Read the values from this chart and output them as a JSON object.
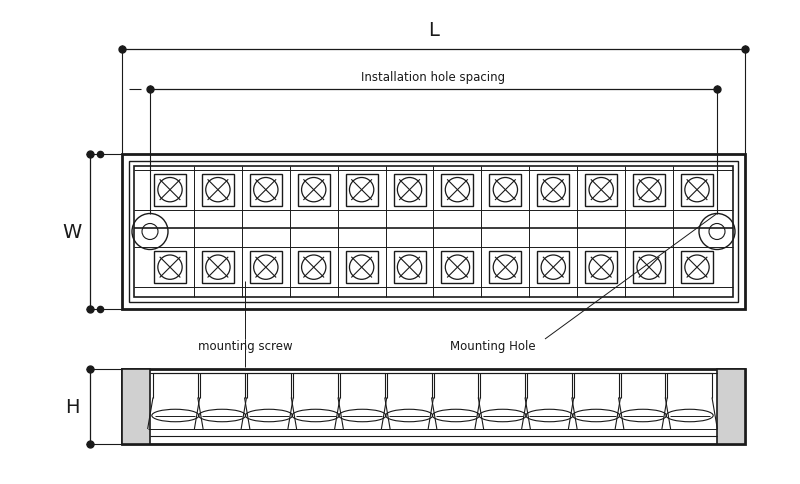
{
  "bg_color": "#ffffff",
  "line_color": "#1a1a1a",
  "dim_L_label": "L",
  "dim_W_label": "W",
  "dim_H_label": "H",
  "installation_label": "Installation hole spacing",
  "mounting_screw_label": "mounting screw",
  "mounting_hole_label": "Mounting Hole",
  "num_terminals": 12,
  "figsize": [
    8.0,
    4.85
  ],
  "dpi": 100
}
